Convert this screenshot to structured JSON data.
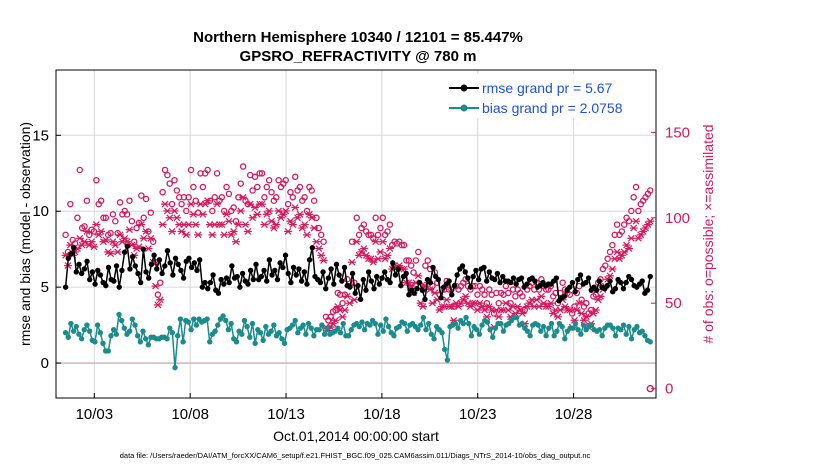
{
  "chart_data": {
    "type": "line",
    "title": "Northern Hemisphere 10340 / 12101 = 85.447%",
    "subtitle": "GPSRO_REFRACTIVITY @ 780 m",
    "xlabel": "Oct.01,2014 00:00:00 start",
    "ylabel": "rmse and bias (model - observation)",
    "y2label": "# of obs: o=possible; ×=assimilated",
    "footnote": "data file: /Users/raeder/DAI/ATM_forcXX/CAM6_setup/f.e21.FHIST_BGC.f09_025.CAM6assim.011/Diags_NTrS_2014-10/obs_diag_output.nc",
    "x_range_days": [
      1.0,
      32.3
    ],
    "x_ticks": [
      {
        "day": 3,
        "label": "10/03"
      },
      {
        "day": 8,
        "label": "10/08"
      },
      {
        "day": 13,
        "label": "10/13"
      },
      {
        "day": 18,
        "label": "10/18"
      },
      {
        "day": 23,
        "label": "10/23"
      },
      {
        "day": 28,
        "label": "10/28"
      }
    ],
    "ylim": [
      -2.3,
      19.3
    ],
    "y_ticks": [
      0,
      5,
      10,
      15
    ],
    "y2lim": [
      -5.5,
      186.5
    ],
    "y2_ticks": [
      0,
      50,
      100,
      150
    ],
    "grid": true,
    "legend_placement": "top-right",
    "colors": {
      "rmse": "#000000",
      "bias": "#1a8c8c",
      "obs": "#d6195e",
      "zero_line": "#c9b3b3",
      "legend_text": "#1f4fe0"
    },
    "series": [
      {
        "name": "rmse grand pr = 5.67",
        "axis": "left",
        "values": [
          5.0,
          6.9,
          7.2,
          7.6,
          6.0,
          6.5,
          5.9,
          6.2,
          6.7,
          5.5,
          6.0,
          5.2,
          6.1,
          5.8,
          5.3,
          5.1,
          6.3,
          5.5,
          5.4,
          6.4,
          5.0,
          6.1,
          7.3,
          7.7,
          6.2,
          7.0,
          6.4,
          5.9,
          5.3,
          7.5,
          6.0,
          5.6,
          6.5,
          7.1,
          6.2,
          6.8,
          5.9,
          6.4,
          7.4,
          6.6,
          5.8,
          6.9,
          6.5,
          6.1,
          5.6,
          6.7,
          6.9,
          6.3,
          6.6,
          6.1,
          6.8,
          5.0,
          5.3,
          4.9,
          5.3,
          5.8,
          4.8,
          4.6,
          5.5,
          5.2,
          5.6,
          5.3,
          6.4,
          5.6,
          5.7,
          5.0,
          5.9,
          5.4,
          5.2,
          6.1,
          5.5,
          6.5,
          5.5,
          5.7,
          6.1,
          5.4,
          6.8,
          5.8,
          6.1,
          5.5,
          6.6,
          6.3,
          7.1,
          5.9,
          5.3,
          6.3,
          5.8,
          6.2,
          5.4,
          6.0,
          5.2,
          6.8,
          7.6,
          5.7,
          5.5,
          5.3,
          6.0,
          4.9,
          5.6,
          6.2,
          5.2,
          6.5,
          5.8,
          5.4,
          6.3,
          5.1,
          5.0,
          5.9,
          4.6,
          5.1,
          4.2,
          5.5,
          4.8,
          6.0,
          5.4,
          4.9,
          5.7,
          5.2,
          5.6,
          6.0,
          5.5,
          5.3,
          6.6,
          5.8,
          6.2,
          5.1,
          5.7,
          5.9,
          4.5,
          4.8,
          4.6,
          4.9,
          5.3,
          4.8,
          4.2,
          5.5,
          5.3,
          6.3,
          5.7,
          5.5,
          4.3,
          5.0,
          5.2,
          5.4,
          4.5,
          5.1,
          5.8,
          6.2,
          6.4,
          6.0,
          5.6,
          5.0,
          5.7,
          6.1,
          5.5,
          6.2,
          6.3,
          5.4,
          6.0,
          5.6,
          5.5,
          5.9,
          5.3,
          5.7,
          5.4,
          5.4,
          5.3,
          5.6,
          5.2,
          5.5,
          5.6,
          5.0,
          5.2,
          5.5,
          5.6,
          5.4,
          5.0,
          5.1,
          5.3,
          5.1,
          5.2,
          5.2,
          5.4,
          5.6,
          4.1,
          4.3,
          4.4,
          4.8,
          5.0,
          5.3,
          4.7,
          5.5,
          5.8,
          5.2,
          5.3,
          5.6,
          4.8,
          5.0,
          4.8,
          5.4,
          5.0,
          4.9,
          5.1,
          5.4,
          4.7,
          4.9,
          5.5,
          5.3,
          4.9,
          5.3,
          5.7,
          5.5,
          5.1,
          5.0,
          5.2,
          5.4,
          4.6,
          4.8,
          5.7
        ]
      },
      {
        "name": "bias grand pr = 2.0758",
        "axis": "left",
        "values": [
          2.0,
          1.7,
          2.6,
          2.1,
          2.4,
          1.9,
          1.6,
          2.2,
          2.5,
          2.1,
          1.5,
          1.4,
          2.5,
          2.0,
          1.3,
          0.8,
          0.8,
          1.8,
          2.2,
          1.9,
          3.2,
          2.8,
          2.3,
          1.9,
          2.1,
          2.9,
          2.5,
          1.8,
          1.4,
          2.1,
          1.6,
          1.2,
          1.7,
          1.7,
          1.6,
          1.6,
          1.7,
          1.7,
          1.6,
          2.3,
          2.0,
          -0.3,
          1.8,
          2.9,
          1.4,
          2.8,
          2.7,
          2.2,
          2.9,
          2.5,
          2.9,
          2.7,
          2.8,
          2.9,
          1.4,
          1.9,
          2.1,
          2.5,
          2.9,
          3.1,
          2.8,
          2.2,
          2.6,
          1.6,
          1.4,
          2.1,
          1.9,
          2.8,
          2.4,
          1.7,
          2.6,
          1.3,
          2.2,
          2.0,
          1.5,
          2.4,
          1.9,
          2.1,
          2.5,
          1.8,
          2.0,
          1.6,
          1.3,
          2.2,
          2.3,
          2.5,
          2.8,
          2.0,
          2.3,
          2.5,
          1.9,
          2.6,
          2.3,
          1.8,
          2.2,
          2.2,
          2.5,
          1.9,
          2.3,
          1.9,
          2.0,
          2.1,
          2.3,
          2.0,
          2.6,
          1.8,
          1.8,
          2.2,
          2.5,
          2.6,
          2.4,
          2.7,
          2.2,
          2.6,
          2.5,
          2.8,
          2.6,
          1.9,
          2.5,
          2.1,
          2.9,
          2.4,
          2.0,
          1.8,
          2.3,
          2.4,
          2.7,
          2.6,
          2.1,
          2.5,
          2.6,
          2.4,
          2.2,
          2.5,
          3.0,
          2.2,
          2.6,
          1.9,
          1.6,
          2.4,
          2.2,
          2.0,
          0.9,
          0.2,
          2.4,
          2.5,
          2.6,
          2.3,
          2.8,
          2.6,
          3.0,
          2.6,
          1.8,
          2.4,
          2.2,
          1.9,
          2.5,
          2.8,
          2.7,
          2.2,
          1.7,
          2.3,
          2.6,
          2.6,
          2.1,
          2.5,
          2.6,
          2.8,
          3.0,
          3.0,
          2.5,
          2.6,
          2.3,
          2.1,
          1.8,
          2.5,
          2.6,
          2.5,
          2.1,
          2.4,
          1.8,
          2.3,
          2.6,
          1.8,
          2.1,
          2.6,
          2.4,
          1.6,
          2.1,
          2.3,
          2.3,
          2.6,
          2.2,
          1.9,
          2.5,
          2.2,
          2.4,
          2.5,
          2.2,
          2.1,
          2.2,
          1.8,
          2.3,
          2.5,
          2.5,
          2.3,
          1.8,
          2.3,
          2.2,
          2.5,
          1.9,
          2.4,
          1.6,
          2.2,
          2.4,
          2.0,
          2.1,
          1.8,
          1.5,
          1.4
        ]
      },
      {
        "name": "possible",
        "axis": "right",
        "marker": "o",
        "values": [
          90,
          80,
          108,
          87,
          85,
          100,
          128,
          94,
          95,
          110,
          90,
          93,
          92,
          122,
          108,
          110,
          100,
          100,
          90,
          91,
          102,
          98,
          91,
          109,
          102,
          104,
          102,
          110,
          98,
          86,
          94,
          97,
          113,
          100,
          111,
          92,
          103,
          86,
          74,
          55,
          62,
          115,
          128,
          125,
          120,
          108,
          122,
          116,
          112,
          108,
          112,
          104,
          112,
          128,
          118,
          110,
          103,
          126,
          118,
          126,
          128,
          110,
          104,
          112,
          126,
          110,
          112,
          104,
          118,
          114,
          104,
          106,
          98,
          112,
          120,
          130,
          110,
          108,
          125,
          116,
          124,
          118,
          126,
          126,
          112,
          118,
          122,
          115,
          110,
          112,
          122,
          118,
          120,
          122,
          108,
          115,
          112,
          124,
          116,
          118,
          110,
          112,
          104,
          118,
          116,
          110,
          100,
          94,
          90,
          86,
          42,
          40,
          42,
          45,
          46,
          56,
          55,
          50,
          55,
          64,
          60,
          86,
          62,
          100,
          90,
          94,
          96,
          92,
          90,
          90,
          88,
          100,
          90,
          94,
          100,
          90,
          92,
          96,
          84,
          86,
          85,
          86,
          84,
          84,
          75,
          75,
          72,
          68,
          75,
          80,
          60,
          58,
          72,
          75,
          70,
          60,
          68,
          62,
          55,
          58,
          58,
          63,
          58,
          58,
          48,
          60,
          58,
          60,
          62,
          64,
          60,
          58,
          60,
          60,
          55,
          60,
          58,
          55,
          50,
          58,
          55,
          44,
          56,
          50,
          56,
          55,
          60,
          56,
          50,
          58,
          54,
          58,
          56,
          54,
          46,
          58,
          60,
          62,
          58,
          62,
          58,
          64,
          60,
          58,
          58,
          60,
          54,
          56,
          50,
          56,
          62,
          58,
          56,
          55,
          44,
          48,
          56,
          60,
          52,
          48,
          50,
          44,
          46,
          54,
          55,
          62,
          64,
          70,
          72,
          76,
          80,
          84,
          90,
          96,
          90,
          92,
          96,
          100,
          98,
          104,
          112,
          118,
          104,
          108,
          110,
          112,
          114,
          116
        ]
      },
      {
        "name": "assimilated",
        "axis": "right",
        "marker": "x",
        "values": [
          78,
          72,
          84,
          78,
          80,
          82,
          88,
          84,
          86,
          92,
          84,
          86,
          83,
          96,
          90,
          92,
          86,
          87,
          80,
          79,
          86,
          84,
          80,
          90,
          86,
          88,
          86,
          93,
          84,
          78,
          82,
          83,
          96,
          88,
          92,
          82,
          88,
          74,
          60,
          49,
          52,
          96,
          108,
          104,
          100,
          92,
          104,
          100,
          96,
          92,
          96,
          90,
          96,
          108,
          102,
          96,
          90,
          108,
          102,
          108,
          110,
          96,
          90,
          96,
          108,
          96,
          96,
          90,
          102,
          98,
          90,
          92,
          86,
          96,
          104,
          112,
          96,
          92,
          108,
          100,
          106,
          102,
          108,
          108,
          96,
          102,
          104,
          98,
          94,
          96,
          104,
          100,
          102,
          104,
          92,
          98,
          96,
          106,
          100,
          102,
          94,
          96,
          90,
          102,
          100,
          94,
          86,
          82,
          78,
          75,
          36,
          34,
          36,
          38,
          40,
          48,
          46,
          42,
          46,
          54,
          50,
          74,
          52,
          86,
          78,
          80,
          82,
          78,
          76,
          76,
          74,
          86,
          76,
          80,
          86,
          76,
          78,
          82,
          70,
          72,
          71,
          72,
          70,
          70,
          62,
          62,
          60,
          56,
          62,
          66,
          50,
          48,
          60,
          62,
          58,
          50,
          56,
          52,
          46,
          48,
          48,
          52,
          48,
          48,
          40,
          50,
          48,
          50,
          52,
          54,
          50,
          48,
          50,
          50,
          46,
          50,
          48,
          46,
          42,
          48,
          46,
          36,
          46,
          42,
          46,
          46,
          50,
          46,
          42,
          48,
          44,
          48,
          46,
          44,
          38,
          48,
          50,
          52,
          48,
          52,
          48,
          54,
          50,
          48,
          48,
          50,
          44,
          46,
          42,
          46,
          52,
          48,
          46,
          46,
          36,
          40,
          46,
          50,
          44,
          40,
          42,
          36,
          38,
          44,
          46,
          52,
          54,
          58,
          60,
          64,
          66,
          70,
          76,
          80,
          76,
          78,
          80,
          84,
          82,
          88,
          94,
          98,
          88,
          90,
          92,
          94,
          96,
          98
        ]
      }
    ]
  }
}
